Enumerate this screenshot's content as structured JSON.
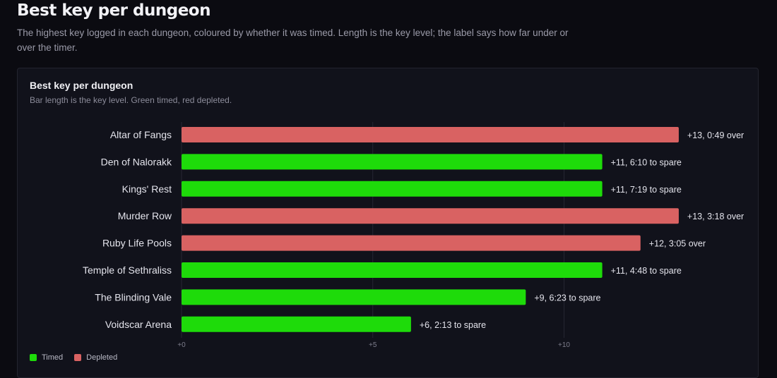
{
  "page": {
    "title": "Best key per dungeon",
    "description": "The highest key logged in each dungeon, coloured by whether it was timed. Length is the key level; the label says how far under or over the timer."
  },
  "card": {
    "title": "Best key per dungeon",
    "subtitle": "Bar length is the key level. Green timed, red depleted."
  },
  "legend": {
    "timed": {
      "label": "Timed",
      "color": "#1edb0a"
    },
    "depleted": {
      "label": "Depleted",
      "color": "#d96262"
    }
  },
  "chart_data": {
    "type": "bar",
    "orientation": "horizontal",
    "categories": [
      "Altar of Fangs",
      "Den of Nalorakk",
      "Kings' Rest",
      "Murder Row",
      "Ruby Life Pools",
      "Temple of Sethraliss",
      "The Blinding Vale",
      "Voidscar Arena"
    ],
    "values": [
      13,
      11,
      11,
      13,
      12,
      11,
      9,
      6
    ],
    "status": [
      "depleted",
      "timed",
      "timed",
      "depleted",
      "depleted",
      "timed",
      "timed",
      "timed"
    ],
    "labels": [
      "+13, 0:49 over",
      "+11, 6:10 to spare",
      "+11, 7:19 to spare",
      "+13, 3:18 over",
      "+12, 3:05 over",
      "+11, 4:48 to spare",
      "+9, 6:23 to spare",
      "+6, 2:13 to spare"
    ],
    "xlim": [
      0,
      13.5
    ],
    "xticks": [
      0,
      5,
      10
    ],
    "xtick_labels": [
      "+0",
      "+5",
      "+10"
    ],
    "grid": true,
    "legend_position": "bottom-left"
  }
}
